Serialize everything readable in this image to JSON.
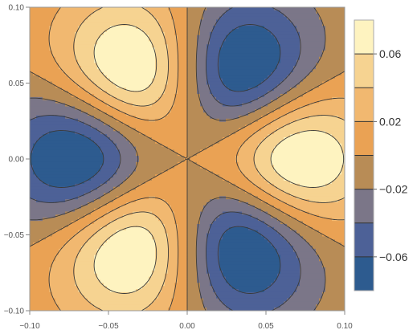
{
  "chart_data": {
    "type": "contour",
    "title": "",
    "xlabel": "",
    "ylabel": "",
    "xlim": [
      -0.1,
      0.1
    ],
    "ylim": [
      -0.1,
      0.1
    ],
    "x_ticks": [
      "-0.10",
      "-0.05",
      "0.00",
      "0.05",
      "0.10"
    ],
    "x_tick_values": [
      -0.1,
      -0.05,
      0.0,
      0.05,
      0.1
    ],
    "y_ticks": [
      "0.10",
      "0.05",
      "0.00",
      "-0.05",
      "-0.10"
    ],
    "y_tick_values": [
      0.1,
      0.05,
      0.0,
      -0.05,
      -0.1
    ],
    "function": "0.08 * (r/0.075)^3 * exp(1.5*(1-(r/0.075)^2)) * cos(3*theta)",
    "contour_levels": [
      -0.06,
      -0.04,
      -0.02,
      0.0,
      0.02,
      0.04,
      0.06
    ],
    "value_range": [
      -0.08,
      0.08
    ],
    "band_colors": [
      "#2d5b8f",
      "#4d6197",
      "#7b7688",
      "#b88c56",
      "#eaa254",
      "#f1b870",
      "#f6d391",
      "#fef3c0"
    ],
    "contour_line_color": "#3a3a3a",
    "extrema": [
      {
        "kind": "max",
        "x": 0.075,
        "y": 0.0
      },
      {
        "kind": "max",
        "x": -0.0375,
        "y": 0.065
      },
      {
        "kind": "max",
        "x": -0.0375,
        "y": -0.065
      },
      {
        "kind": "min",
        "x": -0.075,
        "y": 0.0
      },
      {
        "kind": "min",
        "x": 0.0375,
        "y": 0.065
      },
      {
        "kind": "min",
        "x": 0.0375,
        "y": -0.065
      }
    ],
    "legend": {
      "position": "right",
      "labels": [
        "0.06",
        "0.02",
        "−0.02",
        "−0.06"
      ],
      "label_values": [
        0.06,
        0.02,
        -0.02,
        -0.06
      ]
    }
  }
}
